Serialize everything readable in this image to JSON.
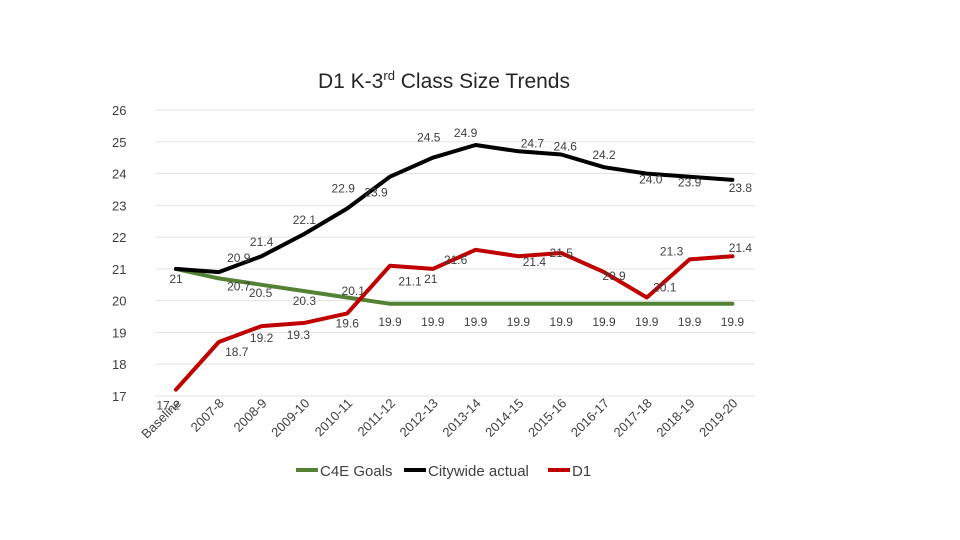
{
  "chart_data": {
    "type": "line",
    "title": "D1 K-3rd Class Size Trends",
    "title_main": "D1 K-3",
    "title_sup": "rd",
    "title_rest": " Class Size Trends",
    "categories": [
      "Baseline",
      "2007-8",
      "2008-9",
      "2009-10",
      "2010-11",
      "2011-12",
      "2012-13",
      "2013-14",
      "2014-15",
      "2015-16",
      "2016-17",
      "2017-18",
      "2018-19",
      "2019-20"
    ],
    "y_ticks": [
      "17",
      "18",
      "19",
      "20",
      "21",
      "22",
      "23",
      "24",
      "25",
      "26"
    ],
    "ylim": [
      17,
      26
    ],
    "grid": true,
    "legend_position": "bottom",
    "series": [
      {
        "name": "C4E Goals",
        "color": "#548235",
        "values": [
          21,
          20.7,
          20.5,
          20.3,
          20.1,
          19.9,
          19.9,
          19.9,
          19.9,
          19.9,
          19.9,
          19.9,
          19.9,
          19.9
        ],
        "labels": [
          "21",
          "20.7",
          "20.5",
          "20.3",
          "",
          "19.9",
          "19.9",
          "19.9",
          "19.9",
          "19.9",
          "19.9",
          "19.9",
          "19.9",
          "19.9"
        ]
      },
      {
        "name": "Citywide actual",
        "color": "#000000",
        "values": [
          21,
          20.9,
          21.4,
          22.1,
          22.9,
          23.9,
          24.5,
          24.9,
          24.7,
          24.6,
          24.2,
          24.0,
          23.9,
          23.8
        ],
        "labels": [
          "",
          "20.9",
          "21.4",
          "22.1",
          "22.9",
          "23.9",
          "24.5",
          "24.9",
          "24.7",
          "24.6",
          "24.2",
          "24.0",
          "23.9",
          "23.8"
        ]
      },
      {
        "name": "D1",
        "color": "#C00000",
        "values": [
          17.2,
          18.7,
          19.2,
          19.3,
          19.6,
          21.1,
          21,
          21.6,
          21.4,
          21.5,
          20.9,
          20.1,
          21.3,
          21.4
        ],
        "labels": [
          "17.2",
          "18.7",
          "19.2",
          "19.3",
          "19.6",
          "21.1",
          "21",
          "21.6",
          "21.4",
          "21.5",
          "20.9",
          "20.1",
          "21.3",
          "21.4"
        ]
      }
    ],
    "extra_labels": [
      "20.1"
    ]
  }
}
